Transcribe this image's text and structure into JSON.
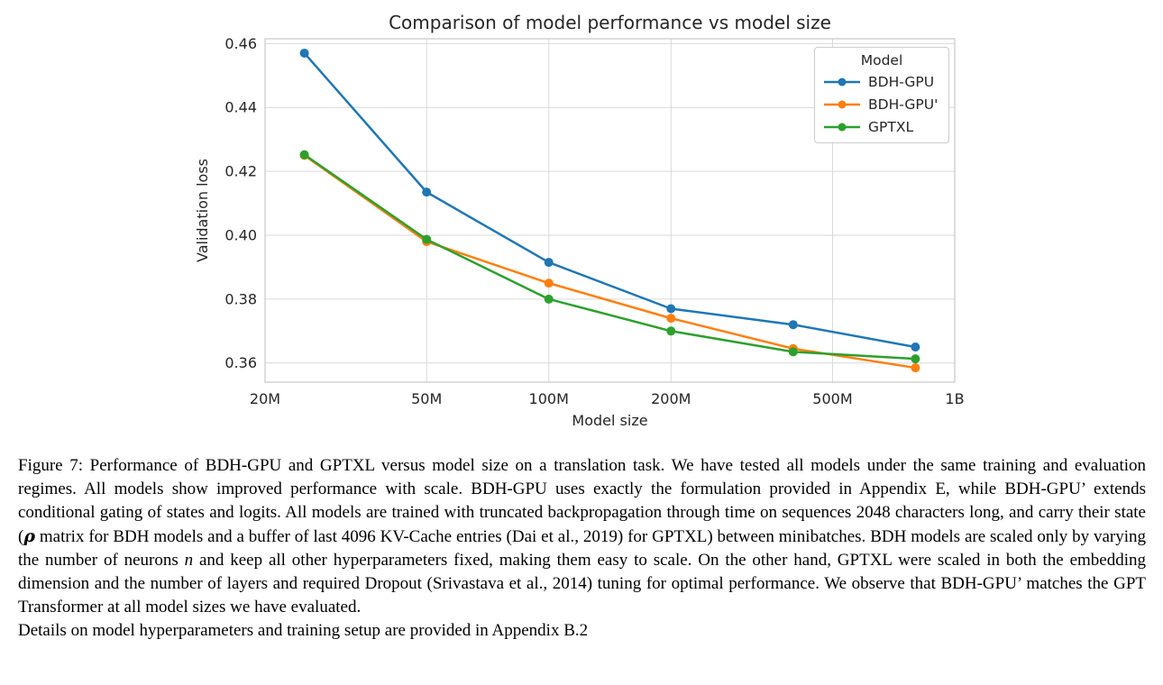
{
  "chart_data": {
    "type": "line",
    "title": "Comparison of model performance vs model size",
    "xlabel": "Model size",
    "ylabel": "Validation loss",
    "xscale": "log",
    "grid": true,
    "legend_title": "Model",
    "legend_position": "upper right",
    "x": [
      25000000,
      50000000,
      100000000,
      200000000,
      400000000,
      800000000
    ],
    "series": [
      {
        "name": "BDH-GPU",
        "color": "#1f77b4",
        "values": [
          0.457,
          0.4135,
          0.3915,
          0.377,
          0.372,
          0.365
        ]
      },
      {
        "name": "BDH-GPU'",
        "color": "#ff7f0e",
        "values": [
          0.425,
          0.398,
          0.385,
          0.374,
          0.3645,
          0.3585
        ]
      },
      {
        "name": "GPTXL",
        "color": "#2ca02c",
        "values": [
          0.4252,
          0.3987,
          0.38,
          0.37,
          0.3635,
          0.3613
        ]
      }
    ],
    "xlim": [
      20000000,
      1000000000
    ],
    "ylim": [
      0.354,
      0.4615
    ],
    "xticks": {
      "values": [
        20000000,
        50000000,
        100000000,
        200000000,
        500000000,
        1000000000
      ],
      "labels": [
        "20M",
        "50M",
        "100M",
        "200M",
        "500M",
        "1B"
      ]
    },
    "yticks": {
      "values": [
        0.36,
        0.38,
        0.4,
        0.42,
        0.44,
        0.46
      ],
      "labels": [
        "0.36",
        "0.38",
        "0.40",
        "0.42",
        "0.44",
        "0.46"
      ]
    }
  },
  "figure": {
    "caption": {
      "part1": "Figure 7: Performance of BDH-GPU and GPTXL versus model size on a translation task. We have tested all models under the same training and evaluation regimes. All models show improved performance with scale. BDH-GPU uses exactly the formulation provided in Appendix E, while BDH-GPU’ extends conditional gating of states and logits. All models are trained with truncated backpropagation through time on sequences 2048 characters long, and carry their state (",
      "rho": "ρ",
      "part2": " matrix for BDH models and a buffer of last 4096 KV-Cache entries (Dai et al., 2019) for GPTXL) between minibatches. BDH models are scaled only by varying the number of neurons ",
      "n": "n",
      "part3": " and keep all other hyperparameters fixed, making them easy to scale. On the other hand, GPTXL were scaled in both the embedding dimension and the number of layers and required Dropout (Srivastava et al., 2014) tuning for optimal performance. We observe that BDH-GPU’ matches the GPT Transformer at all model sizes we have evaluated.",
      "line2": "Details on model hyperparameters and training setup are provided in Appendix B.2"
    }
  }
}
